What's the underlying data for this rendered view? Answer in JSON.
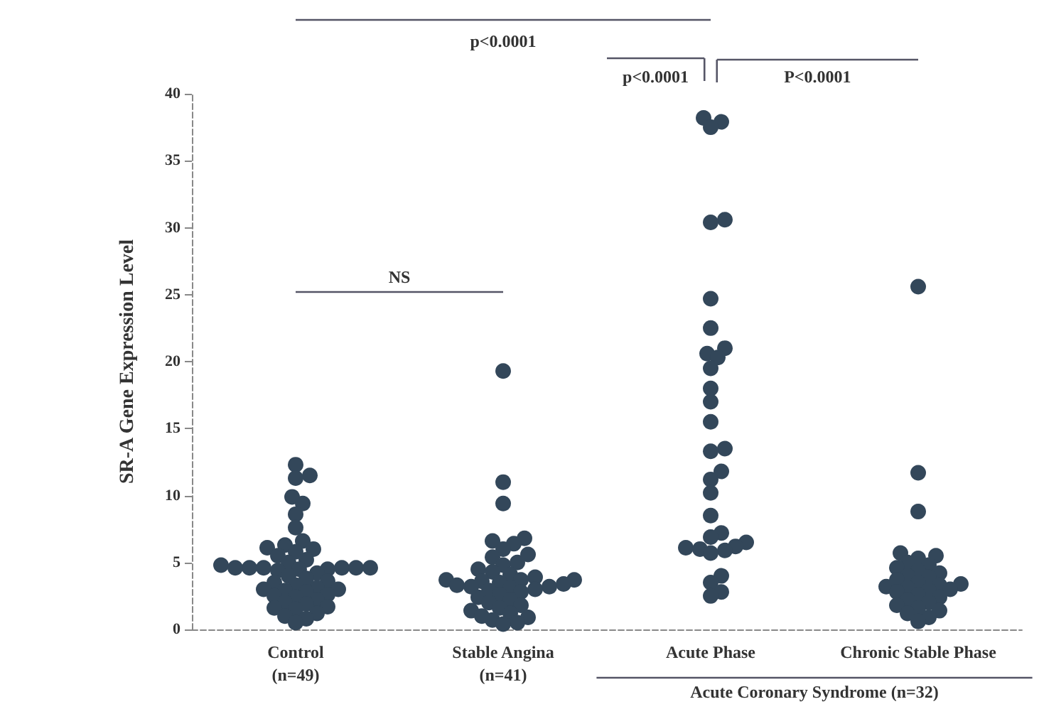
{
  "chart_data": {
    "type": "scatter",
    "ylabel": "SR-A Gene Expression Level",
    "categories": [
      "Control\n(n=49)",
      "Stable Angina\n(n=41)",
      "Acute Phase",
      "Chronic Stable Phase"
    ],
    "ylim": [
      0,
      40
    ],
    "yticks": [
      0,
      5,
      10,
      15,
      20,
      25,
      30,
      35,
      40
    ],
    "grid": false,
    "marker": "circle",
    "annotations": [
      "p<0.0001",
      "p<0.0001",
      "P<0.0001",
      "NS",
      "Acute Coronary Syndrome (n=32)"
    ],
    "series": [
      {
        "color": "#33475a",
        "x": [
          "Control\n(n=49)",
          "Control\n(n=49)",
          "Control\n(n=49)",
          "Control\n(n=49)",
          "Control\n(n=49)",
          "Control\n(n=49)",
          "Control\n(n=49)",
          "Control\n(n=49)",
          "Control\n(n=49)",
          "Control\n(n=49)",
          "Control\n(n=49)",
          "Control\n(n=49)",
          "Control\n(n=49)",
          "Control\n(n=49)",
          "Control\n(n=49)",
          "Control\n(n=49)",
          "Control\n(n=49)",
          "Control\n(n=49)",
          "Control\n(n=49)",
          "Control\n(n=49)",
          "Control\n(n=49)",
          "Control\n(n=49)",
          "Control\n(n=49)",
          "Control\n(n=49)",
          "Control\n(n=49)",
          "Control\n(n=49)",
          "Control\n(n=49)",
          "Control\n(n=49)",
          "Control\n(n=49)",
          "Control\n(n=49)",
          "Control\n(n=49)",
          "Control\n(n=49)",
          "Control\n(n=49)",
          "Control\n(n=49)",
          "Control\n(n=49)",
          "Control\n(n=49)",
          "Control\n(n=49)",
          "Control\n(n=49)",
          "Control\n(n=49)",
          "Control\n(n=49)",
          "Control\n(n=49)",
          "Control\n(n=49)",
          "Control\n(n=49)",
          "Control\n(n=49)",
          "Control\n(n=49)",
          "Control\n(n=49)",
          "Control\n(n=49)",
          "Control\n(n=49)",
          "Control\n(n=49)"
        ],
        "values": [
          12.3,
          11.5,
          11.3,
          9.9,
          9.4,
          8.6,
          7.6,
          6.6,
          6.3,
          6.1,
          6.0,
          5.8,
          5.5,
          5.2,
          5.0,
          4.8,
          4.6,
          4.6,
          4.6,
          4.6,
          4.6,
          4.6,
          4.5,
          4.5,
          4.4,
          4.2,
          4.0,
          3.8,
          3.6,
          3.5,
          3.3,
          3.1,
          3.0,
          3.0,
          2.9,
          2.8,
          2.6,
          2.5,
          2.4,
          2.2,
          2.0,
          1.9,
          1.7,
          1.6,
          1.5,
          1.2,
          1.0,
          0.8,
          0.5
        ]
      },
      {
        "color": "#33475a",
        "x": [
          "Stable Angina\n(n=41)",
          "Stable Angina\n(n=41)",
          "Stable Angina\n(n=41)",
          "Stable Angina\n(n=41)",
          "Stable Angina\n(n=41)",
          "Stable Angina\n(n=41)",
          "Stable Angina\n(n=41)",
          "Stable Angina\n(n=41)",
          "Stable Angina\n(n=41)",
          "Stable Angina\n(n=41)",
          "Stable Angina\n(n=41)",
          "Stable Angina\n(n=41)",
          "Stable Angina\n(n=41)",
          "Stable Angina\n(n=41)",
          "Stable Angina\n(n=41)",
          "Stable Angina\n(n=41)",
          "Stable Angina\n(n=41)",
          "Stable Angina\n(n=41)",
          "Stable Angina\n(n=41)",
          "Stable Angina\n(n=41)",
          "Stable Angina\n(n=41)",
          "Stable Angina\n(n=41)",
          "Stable Angina\n(n=41)",
          "Stable Angina\n(n=41)",
          "Stable Angina\n(n=41)",
          "Stable Angina\n(n=41)",
          "Stable Angina\n(n=41)",
          "Stable Angina\n(n=41)",
          "Stable Angina\n(n=41)",
          "Stable Angina\n(n=41)",
          "Stable Angina\n(n=41)",
          "Stable Angina\n(n=41)",
          "Stable Angina\n(n=41)",
          "Stable Angina\n(n=41)",
          "Stable Angina\n(n=41)",
          "Stable Angina\n(n=41)",
          "Stable Angina\n(n=41)",
          "Stable Angina\n(n=41)",
          "Stable Angina\n(n=41)",
          "Stable Angina\n(n=41)",
          "Stable Angina\n(n=41)"
        ],
        "values": [
          19.3,
          11.0,
          9.4,
          6.8,
          6.6,
          6.4,
          6.0,
          5.6,
          5.4,
          5.0,
          4.8,
          4.5,
          4.3,
          4.1,
          3.9,
          3.7,
          3.7,
          3.7,
          3.6,
          3.5,
          3.4,
          3.3,
          3.2,
          3.2,
          3.1,
          3.0,
          2.9,
          2.8,
          2.6,
          2.4,
          2.2,
          2.0,
          1.8,
          1.6,
          1.4,
          1.2,
          1.0,
          0.9,
          0.7,
          0.5,
          0.4
        ]
      },
      {
        "color": "#33475a",
        "x": [
          "Acute Phase",
          "Acute Phase",
          "Acute Phase",
          "Acute Phase",
          "Acute Phase",
          "Acute Phase",
          "Acute Phase",
          "Acute Phase",
          "Acute Phase",
          "Acute Phase",
          "Acute Phase",
          "Acute Phase",
          "Acute Phase",
          "Acute Phase",
          "Acute Phase",
          "Acute Phase",
          "Acute Phase",
          "Acute Phase",
          "Acute Phase",
          "Acute Phase",
          "Acute Phase",
          "Acute Phase",
          "Acute Phase",
          "Acute Phase",
          "Acute Phase",
          "Acute Phase",
          "Acute Phase",
          "Acute Phase",
          "Acute Phase",
          "Acute Phase",
          "Acute Phase",
          "Acute Phase"
        ],
        "values": [
          38.2,
          37.9,
          37.5,
          30.6,
          30.4,
          24.7,
          22.5,
          21.0,
          20.6,
          20.3,
          19.5,
          18.0,
          17.0,
          15.5,
          13.5,
          13.3,
          11.8,
          11.2,
          10.2,
          8.5,
          7.2,
          6.9,
          6.5,
          6.2,
          6.1,
          6.0,
          5.9,
          5.7,
          4.0,
          3.5,
          2.8,
          2.5
        ]
      },
      {
        "color": "#33475a",
        "x": [
          "Chronic Stable Phase",
          "Chronic Stable Phase",
          "Chronic Stable Phase",
          "Chronic Stable Phase",
          "Chronic Stable Phase",
          "Chronic Stable Phase",
          "Chronic Stable Phase",
          "Chronic Stable Phase",
          "Chronic Stable Phase",
          "Chronic Stable Phase",
          "Chronic Stable Phase",
          "Chronic Stable Phase",
          "Chronic Stable Phase",
          "Chronic Stable Phase",
          "Chronic Stable Phase",
          "Chronic Stable Phase",
          "Chronic Stable Phase",
          "Chronic Stable Phase",
          "Chronic Stable Phase",
          "Chronic Stable Phase",
          "Chronic Stable Phase",
          "Chronic Stable Phase",
          "Chronic Stable Phase",
          "Chronic Stable Phase",
          "Chronic Stable Phase",
          "Chronic Stable Phase",
          "Chronic Stable Phase",
          "Chronic Stable Phase",
          "Chronic Stable Phase",
          "Chronic Stable Phase",
          "Chronic Stable Phase",
          "Chronic Stable Phase"
        ],
        "values": [
          25.6,
          11.7,
          8.8,
          5.7,
          5.5,
          5.3,
          5.0,
          4.8,
          4.6,
          4.4,
          4.2,
          4.0,
          3.9,
          3.7,
          3.5,
          3.4,
          3.3,
          3.2,
          3.1,
          3.0,
          2.9,
          2.8,
          2.6,
          2.4,
          2.2,
          2.0,
          1.8,
          1.6,
          1.4,
          1.2,
          0.9,
          0.6
        ]
      }
    ]
  }
}
